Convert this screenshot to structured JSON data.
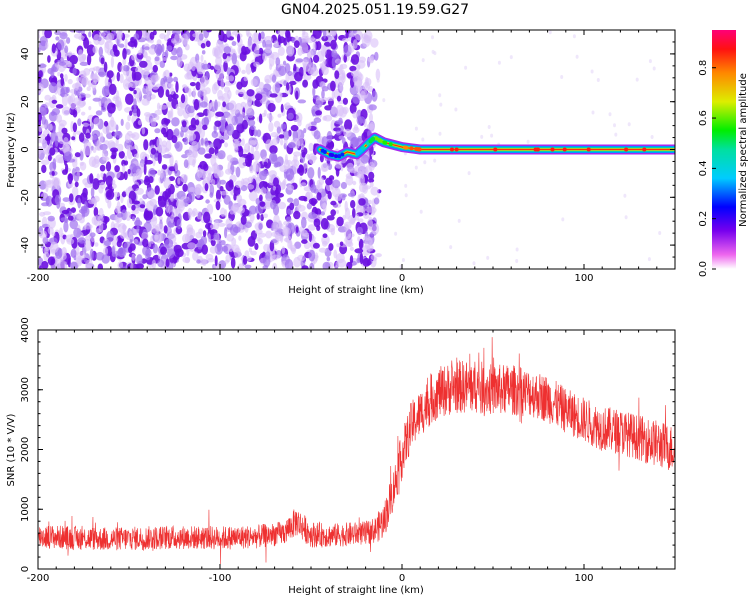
{
  "title": "GN04.2025.051.19.59.G27",
  "chart_data": [
    {
      "type": "heatmap",
      "title": "GN04.2025.051.19.59.G27",
      "xlabel": "Height of straight line (km)",
      "ylabel": "Frequency (Hz)",
      "xlim": [
        -200,
        150
      ],
      "ylim": [
        -50,
        50
      ],
      "x_ticks": [
        "-200",
        "-100",
        "0",
        "100"
      ],
      "y_ticks": [
        "-40",
        "-20",
        "0",
        "20",
        "40"
      ],
      "noise_region_x": [
        -200,
        -15
      ],
      "ridge": {
        "x": [
          -45,
          -40,
          -35,
          -30,
          -25,
          -22,
          -18,
          -15,
          -10,
          -5,
          0,
          5,
          10,
          50,
          100,
          150
        ],
        "y": [
          0,
          -2,
          -3,
          -1,
          -2,
          0,
          3,
          5,
          3,
          2,
          1,
          0.5,
          0,
          0,
          0,
          0
        ],
        "amplitude": [
          0.2,
          0.15,
          0.2,
          0.25,
          0.3,
          0.4,
          0.5,
          0.6,
          0.55,
          0.6,
          0.8,
          0.85,
          0.9,
          0.9,
          0.9,
          0.9
        ]
      },
      "colorbar": {
        "label": "Normalized spectral amplitude",
        "ticks": [
          "0.0",
          "0.2",
          "0.4",
          "0.6",
          "0.8"
        ],
        "range": [
          0,
          0.95
        ]
      }
    },
    {
      "type": "line",
      "xlabel": "Height of straight line (km)",
      "ylabel": "SNR (10 * V/V)",
      "xlim": [
        -200,
        150
      ],
      "ylim": [
        0,
        4000
      ],
      "x_ticks": [
        "-200",
        "-100",
        "0",
        "100"
      ],
      "y_ticks": [
        "0",
        "1000",
        "2000",
        "3000",
        "4000"
      ],
      "color": "#ee3030",
      "series": [
        {
          "x": [
            -200,
            -180,
            -160,
            -140,
            -120,
            -100,
            -80,
            -65,
            -58,
            -50,
            -40,
            -30,
            -20,
            -15,
            -10,
            -5,
            0,
            5,
            10,
            15,
            20,
            30,
            40,
            50,
            60,
            70,
            80,
            90,
            100,
            110,
            120,
            130,
            140,
            150
          ],
          "mean": [
            550,
            520,
            500,
            520,
            530,
            520,
            540,
            600,
            800,
            580,
            560,
            580,
            600,
            650,
            800,
            1300,
            1900,
            2400,
            2600,
            2800,
            2950,
            3050,
            3050,
            3000,
            3000,
            2950,
            2850,
            2650,
            2500,
            2350,
            2300,
            2200,
            2100,
            2000
          ],
          "spread": [
            200,
            200,
            200,
            200,
            200,
            200,
            200,
            200,
            250,
            220,
            200,
            200,
            200,
            220,
            300,
            350,
            400,
            400,
            400,
            420,
            430,
            450,
            450,
            430,
            430,
            400,
            400,
            380,
            380,
            380,
            380,
            380,
            400,
            400
          ]
        }
      ]
    }
  ]
}
